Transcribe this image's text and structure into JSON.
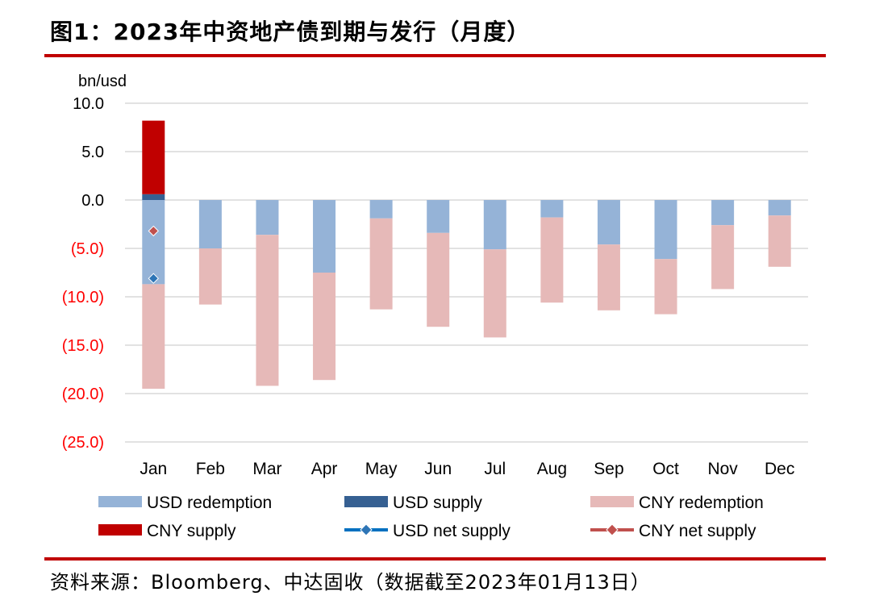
{
  "figure": {
    "title": "图1：2023年中资地产债到期与发行（月度）",
    "source": "资料来源：Bloomberg、中达固收（数据截至2023年01月13日）"
  },
  "colors": {
    "rule": "#c00000",
    "usd_redemption": "#95b3d7",
    "usd_supply": "#366092",
    "cny_redemption": "#e6b9b8",
    "cny_supply": "#c00000",
    "usd_net_supply_line": "#0070c0",
    "usd_net_supply_marker": "#2e75b6",
    "cny_net_supply_line": "#c0504d",
    "cny_net_supply_marker": "#c0504d",
    "grid": "#d9d9d9",
    "negative_tick": "#ff0000",
    "positive_tick": "#000000"
  },
  "chart_data": {
    "type": "bar",
    "stacked": true,
    "ylabel": "bn/usd",
    "ylim": [
      -25,
      10
    ],
    "yticks": [
      10,
      5,
      0,
      -5,
      -10,
      -15,
      -20,
      -25
    ],
    "ytick_labels": [
      "10.0",
      "5.0",
      "0.0",
      "(5.0)",
      "(10.0)",
      "(15.0)",
      "(20.0)",
      "(25.0)"
    ],
    "categories": [
      "Jan",
      "Feb",
      "Mar",
      "Apr",
      "May",
      "Jun",
      "Jul",
      "Aug",
      "Sep",
      "Oct",
      "Nov",
      "Dec"
    ],
    "series": [
      {
        "name": "USD redemption",
        "kind": "bar",
        "color_key": "usd_redemption",
        "values": [
          -8.7,
          -5.0,
          -3.6,
          -7.5,
          -1.9,
          -3.4,
          -5.1,
          -1.8,
          -4.6,
          -6.1,
          -2.6,
          -1.6
        ]
      },
      {
        "name": "USD supply",
        "kind": "bar",
        "color_key": "usd_supply",
        "values": [
          0.6,
          0,
          0,
          0,
          0,
          0,
          0,
          0,
          0,
          0,
          0,
          0
        ]
      },
      {
        "name": "CNY redemption",
        "kind": "bar",
        "color_key": "cny_redemption",
        "values": [
          -10.8,
          -5.8,
          -15.6,
          -11.1,
          -9.4,
          -9.7,
          -9.1,
          -8.8,
          -6.8,
          -5.7,
          -6.6,
          -5.3
        ]
      },
      {
        "name": "CNY supply",
        "kind": "bar",
        "color_key": "cny_supply",
        "values": [
          7.6,
          0,
          0,
          0,
          0,
          0,
          0,
          0,
          0,
          0,
          0,
          0
        ]
      },
      {
        "name": "USD net supply",
        "kind": "marker",
        "color_key": "usd_net_supply_marker",
        "line_color_key": "usd_net_supply_line",
        "values": [
          -8.1,
          null,
          null,
          null,
          null,
          null,
          null,
          null,
          null,
          null,
          null,
          null
        ]
      },
      {
        "name": "CNY net supply",
        "kind": "marker",
        "color_key": "cny_net_supply_marker",
        "line_color_key": "cny_net_supply_line",
        "values": [
          -3.2,
          null,
          null,
          null,
          null,
          null,
          null,
          null,
          null,
          null,
          null,
          null
        ]
      }
    ],
    "legend": {
      "placement": "bottom",
      "rows": [
        [
          "USD redemption",
          "USD supply",
          "CNY redemption"
        ],
        [
          "CNY supply",
          "USD net supply",
          "CNY net supply"
        ]
      ]
    },
    "grid": true
  }
}
